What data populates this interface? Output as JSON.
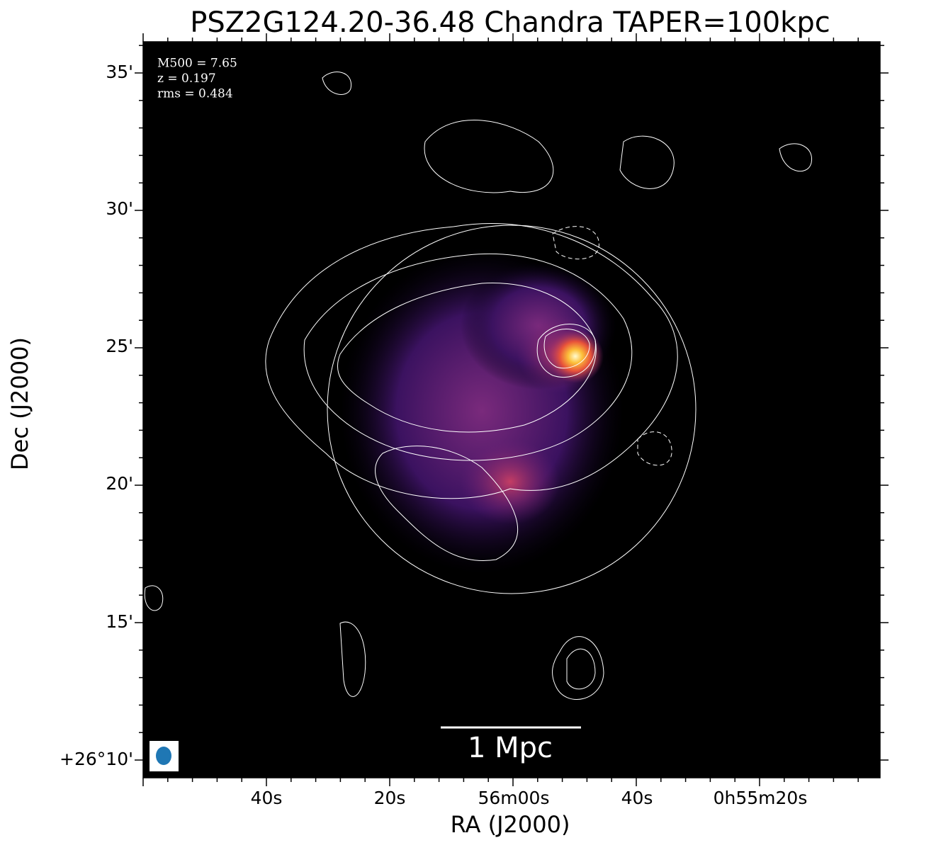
{
  "title": "PSZ2G124.20-36.48 Chandra TAPER=100kpc",
  "axes": {
    "xlabel": "RA (J2000)",
    "ylabel": "Dec (J2000)",
    "xticks": [
      "40s",
      "20s",
      "56m00s",
      "40s",
      "0h55m20s"
    ],
    "yticks": [
      "35'",
      "30'",
      "25'",
      "20'",
      "15'",
      "+26°10'"
    ]
  },
  "annotations": [
    "M500 = 7.65",
    "z = 0.197",
    "rms = 0.484"
  ],
  "scale_bar": "1 Mpc"
}
